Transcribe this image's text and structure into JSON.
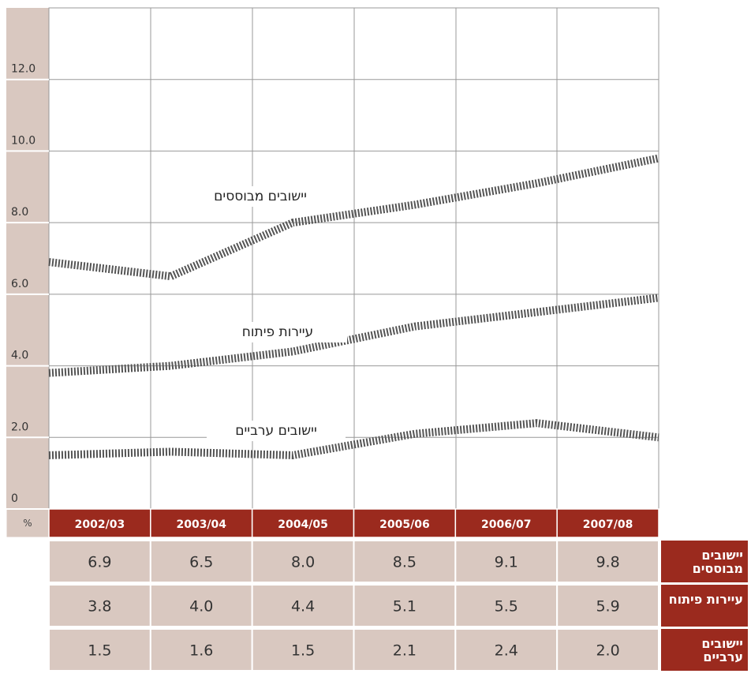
{
  "chart_data": {
    "type": "line",
    "y_label": "%",
    "categories": [
      "2002/03",
      "2003/04",
      "2004/05",
      "2005/06",
      "2006/07",
      "2007/08"
    ],
    "series": [
      {
        "name": "יישובים מבוססים",
        "color": "#555555",
        "values": [
          6.9,
          6.5,
          8.0,
          8.5,
          9.1,
          9.8
        ],
        "value_labels": [
          "6.9",
          "6.5",
          "8.0",
          "8.5",
          "9.1",
          "9.8"
        ]
      },
      {
        "name": "עיירות פיתוח",
        "color": "#555555",
        "values": [
          3.8,
          4.0,
          4.4,
          5.1,
          5.5,
          5.9
        ],
        "value_labels": [
          "3.8",
          "4.0",
          "4.4",
          "5.1",
          "5.5",
          "5.9"
        ]
      },
      {
        "name": "יישובים ערביים",
        "color": "#555555",
        "values": [
          1.5,
          1.6,
          1.5,
          2.1,
          2.4,
          2.0
        ],
        "value_labels": [
          "1.5",
          "1.6",
          "1.5",
          "2.1",
          "2.4",
          "2.0"
        ]
      }
    ],
    "ylim": [
      0,
      14
    ],
    "yticks": [
      0,
      {
        "value": 2,
        "label": "2.0"
      },
      {
        "value": 4,
        "label": "4.0"
      },
      {
        "value": 6,
        "label": "6.0"
      },
      {
        "value": 8,
        "label": "8.0"
      },
      {
        "value": 10,
        "label": "10.0"
      },
      {
        "value": 12,
        "label": "12.0"
      }
    ],
    "grid": true
  }
}
